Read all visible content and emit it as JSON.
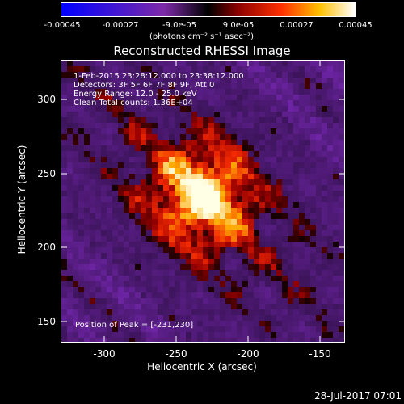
{
  "colorbar": {
    "ticks": [
      "-0.00045",
      "-0.00027",
      "-9.0e-05",
      "9.0e-05",
      "0.00027",
      "0.00045"
    ],
    "units": "(photons cm⁻² s⁻¹ asec⁻²)"
  },
  "plot": {
    "title": "Reconstructed RHESSI Image",
    "annotations": {
      "time": "1-Feb-2015 23:28:12.000 to 23:38:12.000",
      "detectors": "Detectors: 3F 5F 6F 7F 8F 9F, Att 0",
      "energy": "Energy Range: 12.0 - 25.0 keV",
      "clean": "Clean     Total counts: 1.36E+04",
      "peak": "Position of Peak = [-231,230]"
    },
    "x_axis": {
      "label": "Heliocentric X (arcsec)",
      "ticks": [
        "-300",
        "-250",
        "-200",
        "-150"
      ]
    },
    "y_axis": {
      "label": "Heliocentric Y (arcsec)",
      "ticks": [
        "300",
        "250",
        "200",
        "150"
      ]
    }
  },
  "timestamp": "28-Jul-2017 07:01"
}
